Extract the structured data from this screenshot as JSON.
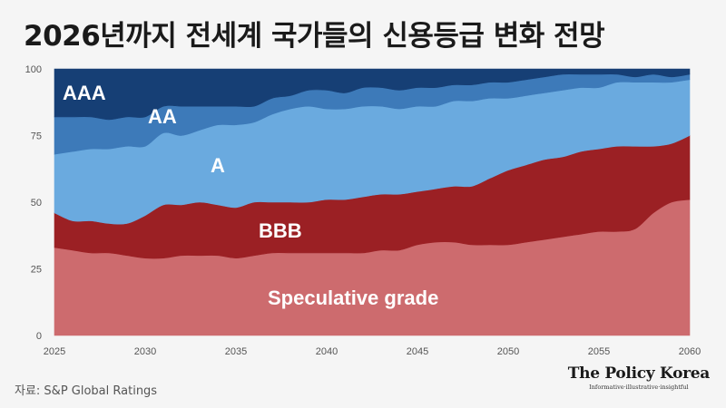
{
  "title": "2026년까지 전세계 국가들의 신용등급 변화 전망",
  "source": "자료: S&P Global Ratings",
  "brand": {
    "name": "The Policy Korea",
    "tagline": "Informative·illustrative·insightful"
  },
  "colors": {
    "background": "#f5f5f5",
    "speculative": "#cd6b6e",
    "bbb": "#9b2024",
    "a": "#6aaadf",
    "aa": "#3d7ab9",
    "aaa": "#163f75"
  },
  "chart_data": {
    "type": "area",
    "stacked": true,
    "percent": true,
    "title": "2026년까지 전세계 국가들의 신용등급 변화 전망",
    "x": [
      2025,
      2026,
      2027,
      2028,
      2029,
      2030,
      2031,
      2032,
      2033,
      2034,
      2035,
      2036,
      2037,
      2038,
      2039,
      2040,
      2041,
      2042,
      2043,
      2044,
      2045,
      2046,
      2047,
      2048,
      2049,
      2050,
      2051,
      2052,
      2053,
      2054,
      2055,
      2056,
      2057,
      2058,
      2059,
      2060
    ],
    "x_tick_labels": [
      "2025",
      "2030",
      "2035",
      "2040",
      "2045",
      "2050",
      "2055",
      "2060"
    ],
    "x_tick_values": [
      2025,
      2030,
      2035,
      2040,
      2045,
      2050,
      2055,
      2060
    ],
    "y_tick_labels": [
      "0",
      "25",
      "50",
      "75",
      "100"
    ],
    "y_tick_values": [
      0,
      25,
      50,
      75,
      100
    ],
    "ylim": [
      0,
      100
    ],
    "series": [
      {
        "name": "Speculative grade",
        "values": [
          33,
          32,
          31,
          31,
          30,
          29,
          29,
          30,
          30,
          30,
          29,
          30,
          31,
          31,
          31,
          31,
          31,
          31,
          32,
          32,
          34,
          35,
          35,
          34,
          34,
          34,
          35,
          36,
          37,
          38,
          39,
          39,
          40,
          46,
          50,
          51
        ]
      },
      {
        "name": "BBB",
        "values": [
          13,
          11,
          12,
          11,
          12,
          16,
          20,
          19,
          20,
          19,
          19,
          20,
          19,
          19,
          19,
          20,
          20,
          21,
          21,
          21,
          20,
          20,
          21,
          22,
          25,
          28,
          29,
          30,
          30,
          31,
          31,
          32,
          31,
          25,
          22,
          24
        ]
      },
      {
        "name": "A",
        "values": [
          22,
          26,
          27,
          28,
          29,
          26,
          27,
          26,
          27,
          30,
          31,
          30,
          33,
          35,
          36,
          34,
          34,
          34,
          33,
          32,
          32,
          31,
          32,
          32,
          30,
          27,
          26,
          25,
          25,
          24,
          23,
          24,
          24,
          24,
          23,
          21
        ]
      },
      {
        "name": "AA",
        "values": [
          14,
          13,
          12,
          11,
          11,
          11,
          10,
          11,
          9,
          7,
          7,
          6,
          6,
          5,
          6,
          7,
          6,
          7,
          7,
          7,
          7,
          7,
          6,
          6,
          6,
          6,
          6,
          6,
          6,
          5,
          5,
          3,
          2,
          3,
          2,
          2
        ]
      },
      {
        "name": "AAA",
        "values": [
          18,
          18,
          18,
          19,
          18,
          18,
          14,
          14,
          14,
          14,
          14,
          14,
          11,
          10,
          8,
          8,
          9,
          7,
          7,
          8,
          7,
          7,
          6,
          6,
          5,
          5,
          4,
          3,
          2,
          2,
          2,
          2,
          3,
          2,
          3,
          2
        ]
      }
    ]
  }
}
